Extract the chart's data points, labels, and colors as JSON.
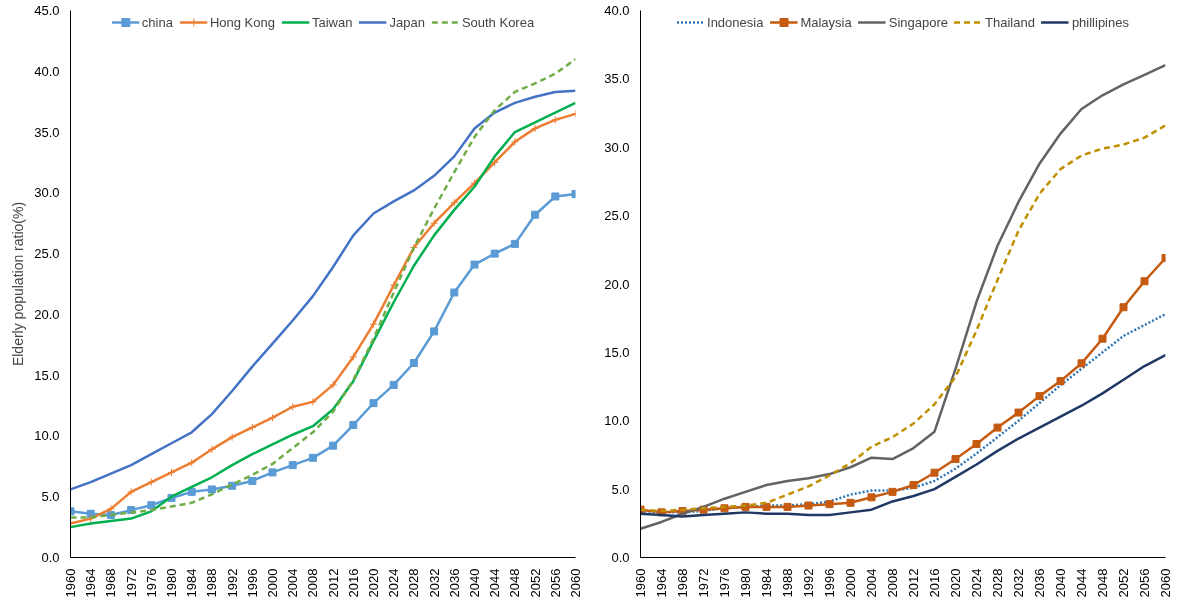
{
  "chart_data": [
    {
      "type": "line",
      "ylabel": "Elderly population ratio(%)",
      "legend": "top",
      "grid": false,
      "x": [
        1960,
        1964,
        1968,
        1972,
        1976,
        1980,
        1984,
        1988,
        1992,
        1996,
        2000,
        2004,
        2008,
        2012,
        2016,
        2020,
        2024,
        2028,
        2032,
        2036,
        2040,
        2044,
        2048,
        2052,
        2056,
        2060
      ],
      "xlim": [
        1960,
        2060
      ],
      "xticks": [
        1960,
        1964,
        1968,
        1972,
        1976,
        1980,
        1984,
        1988,
        1992,
        1996,
        2000,
        2004,
        2008,
        2012,
        2016,
        2020,
        2024,
        2028,
        2032,
        2036,
        2040,
        2044,
        2048,
        2052,
        2056,
        2060
      ],
      "ylim": [
        0,
        45
      ],
      "yticks": [
        {
          "value": 0,
          "label": "0.0"
        },
        {
          "value": 5,
          "label": "5.0"
        },
        {
          "value": 10,
          "label": "10.0"
        },
        {
          "value": 15,
          "label": "15.0"
        },
        {
          "value": 20,
          "label": "20.0"
        },
        {
          "value": 25,
          "label": "25.0"
        },
        {
          "value": 30,
          "label": "30.0"
        },
        {
          "value": 35,
          "label": "35.0"
        },
        {
          "value": 40,
          "label": "40.0"
        },
        {
          "value": 45,
          "label": "45.0"
        }
      ],
      "series": [
        {
          "name": "china",
          "color": "#5b9bd5",
          "marker": "square",
          "line_style": "solid",
          "values": [
            3.8,
            3.6,
            3.5,
            3.9,
            4.3,
            4.9,
            5.4,
            5.6,
            5.9,
            6.3,
            7.0,
            7.6,
            8.2,
            9.2,
            10.9,
            12.7,
            14.2,
            16.0,
            18.6,
            21.8,
            24.1,
            25.0,
            25.8,
            28.2,
            29.7,
            29.9
          ]
        },
        {
          "name": "Hong Kong",
          "color": "#ed7d31",
          "marker": "cross",
          "line_style": "solid",
          "values": [
            2.8,
            3.2,
            4.0,
            5.4,
            6.2,
            7.0,
            7.8,
            8.9,
            9.9,
            10.7,
            11.5,
            12.4,
            12.8,
            14.2,
            16.5,
            19.2,
            22.4,
            25.5,
            27.5,
            29.2,
            30.8,
            32.5,
            34.2,
            35.3,
            36.0,
            36.5
          ]
        },
        {
          "name": "Taiwan",
          "color": "#00b050",
          "marker": "none",
          "line_style": "solid",
          "values": [
            2.5,
            2.8,
            3.0,
            3.2,
            3.8,
            5.0,
            5.8,
            6.6,
            7.6,
            8.5,
            9.3,
            10.1,
            10.8,
            12.2,
            14.5,
            17.8,
            21.0,
            24.0,
            26.5,
            28.6,
            30.5,
            33.0,
            35.0,
            35.8,
            36.6,
            37.4
          ]
        },
        {
          "name": "Japan",
          "color": "#4472c4",
          "marker": "none",
          "line_style": "solid",
          "values": [
            5.6,
            6.2,
            6.9,
            7.6,
            8.5,
            9.4,
            10.3,
            11.8,
            13.7,
            15.7,
            17.6,
            19.5,
            21.5,
            23.9,
            26.5,
            28.3,
            29.3,
            30.2,
            31.4,
            33.0,
            35.3,
            36.6,
            37.4,
            37.9,
            38.3,
            38.4
          ]
        },
        {
          "name": "South Korea",
          "color": "#70ad47",
          "marker": "none",
          "line_style": "dashed",
          "values": [
            3.3,
            3.3,
            3.5,
            3.7,
            3.9,
            4.2,
            4.5,
            5.2,
            6.0,
            6.8,
            7.7,
            9.0,
            10.3,
            12.0,
            14.6,
            18.0,
            21.8,
            25.5,
            28.7,
            31.7,
            34.6,
            36.8,
            38.3,
            39.0,
            39.8,
            41.0
          ]
        }
      ]
    },
    {
      "type": "line",
      "legend": "top",
      "grid": false,
      "x": [
        1960,
        1964,
        1968,
        1972,
        1976,
        1980,
        1984,
        1988,
        1992,
        1996,
        2000,
        2004,
        2008,
        2012,
        2016,
        2020,
        2024,
        2028,
        2032,
        2036,
        2040,
        2044,
        2048,
        2052,
        2056,
        2060
      ],
      "xlim": [
        1960,
        2060
      ],
      "xticks": [
        1960,
        1964,
        1968,
        1972,
        1976,
        1980,
        1984,
        1988,
        1992,
        1996,
        2000,
        2004,
        2008,
        2012,
        2016,
        2020,
        2024,
        2028,
        2032,
        2036,
        2040,
        2044,
        2048,
        2052,
        2056,
        2060
      ],
      "ylim": [
        0,
        40
      ],
      "yticks": [
        {
          "value": 0,
          "label": "0.0"
        },
        {
          "value": 5,
          "label": "5.0"
        },
        {
          "value": 10,
          "label": "10.0"
        },
        {
          "value": 15,
          "label": "15.0"
        },
        {
          "value": 20,
          "label": "20.0"
        },
        {
          "value": 25,
          "label": "25.0"
        },
        {
          "value": 30,
          "label": "30.0"
        },
        {
          "value": 35,
          "label": "35.0"
        },
        {
          "value": 40,
          "label": "40.0"
        }
      ],
      "series": [
        {
          "name": "Indonesia",
          "color": "#2e75b6",
          "marker": "none",
          "line_style": "dotted",
          "values": [
            3.4,
            3.3,
            3.3,
            3.4,
            3.6,
            3.7,
            3.8,
            3.8,
            3.9,
            4.1,
            4.6,
            4.9,
            4.9,
            5.1,
            5.6,
            6.5,
            7.6,
            8.8,
            10.0,
            11.3,
            12.6,
            13.8,
            15.0,
            16.2,
            17.0,
            17.8
          ]
        },
        {
          "name": "Malaysia",
          "color": "#c55a11",
          "marker": "square",
          "line_style": "solid",
          "values": [
            3.5,
            3.3,
            3.4,
            3.5,
            3.6,
            3.7,
            3.7,
            3.7,
            3.8,
            3.9,
            4.0,
            4.4,
            4.8,
            5.3,
            6.2,
            7.2,
            8.3,
            9.5,
            10.6,
            11.8,
            12.9,
            14.2,
            16.0,
            18.3,
            20.2,
            21.9
          ]
        },
        {
          "name": "Singapore",
          "color": "#636363",
          "marker": "none",
          "line_style": "solid",
          "values": [
            2.1,
            2.6,
            3.2,
            3.7,
            4.3,
            4.8,
            5.3,
            5.6,
            5.8,
            6.1,
            6.6,
            7.3,
            7.2,
            8.0,
            9.2,
            13.8,
            18.7,
            22.8,
            26.0,
            28.8,
            31.0,
            32.8,
            33.8,
            34.6,
            35.3,
            36.0
          ]
        },
        {
          "name": "Thailand",
          "color": "#bf9000",
          "marker": "none",
          "line_style": "dashed",
          "values": [
            3.5,
            3.4,
            3.5,
            3.6,
            3.7,
            3.8,
            4.0,
            4.6,
            5.2,
            6.0,
            6.9,
            8.1,
            8.8,
            9.8,
            11.2,
            13.2,
            16.6,
            20.3,
            23.9,
            26.6,
            28.4,
            29.4,
            29.9,
            30.2,
            30.7,
            31.6
          ]
        },
        {
          "name": "phillipines",
          "color": "#203864",
          "marker": "none",
          "line_style": "solid",
          "values": [
            3.2,
            3.1,
            3.0,
            3.1,
            3.2,
            3.3,
            3.2,
            3.2,
            3.1,
            3.1,
            3.3,
            3.5,
            4.1,
            4.5,
            5.0,
            5.9,
            6.8,
            7.8,
            8.7,
            9.5,
            10.3,
            11.1,
            12.0,
            13.0,
            14.0,
            14.8
          ]
        }
      ]
    }
  ]
}
